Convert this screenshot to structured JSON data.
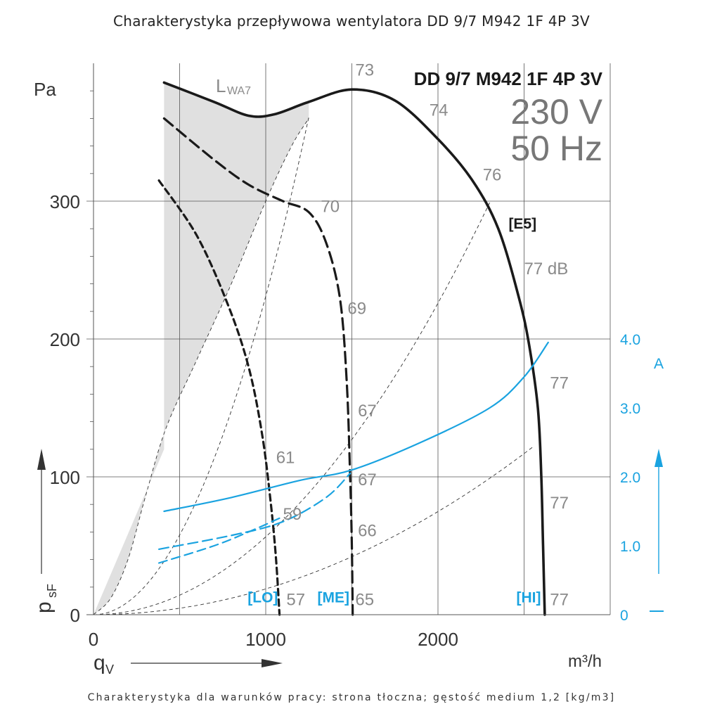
{
  "title": "Charakterystyka przepływowa wentylatora DD 9/7 M942 1F 4P 3V",
  "footnote": "Charakterystyka dla warunków pracy: strona tłoczna; gęstość medium 1,2 [kg/m3]",
  "colors": {
    "curve": "#1a1a1a",
    "current": "#1aa3e0",
    "grid": "#555555",
    "label_gray": "#8a8a8a",
    "shade": "#e0e0e0"
  },
  "chart_data": {
    "type": "line",
    "model": "DD 9/7 M942 1F 4P 3V",
    "voltage": "230 V",
    "frequency": "50 Hz",
    "xlabel": "q",
    "xlabel_sub": "V",
    "xunit": "m³/h",
    "ylabel": "p",
    "ylabel_sub": "sF",
    "yunit": "Pa",
    "y2unit": "A",
    "xlim": [
      0,
      3000
    ],
    "ylim": [
      0,
      400
    ],
    "y2lim": [
      0,
      4.0
    ],
    "x_ticks": [
      0,
      1000,
      2000
    ],
    "y_ticks": [
      0,
      100,
      200,
      300
    ],
    "y2_ticks": [
      "0",
      "1.0",
      "2.0",
      "3.0",
      "4.0"
    ],
    "lwa_label": "L",
    "lwa_sub": "WA7",
    "series_pressure": [
      {
        "name": "[E5]",
        "speed": "HI",
        "points": [
          [
            410,
            386
          ],
          [
            700,
            372
          ],
          [
            900,
            362
          ],
          [
            1050,
            363
          ],
          [
            1250,
            372
          ],
          [
            1500,
            381
          ],
          [
            1750,
            373
          ],
          [
            2000,
            345
          ],
          [
            2200,
            315
          ],
          [
            2350,
            280
          ],
          [
            2470,
            230
          ],
          [
            2530,
            195
          ],
          [
            2580,
            150
          ],
          [
            2600,
            100
          ],
          [
            2610,
            50
          ],
          [
            2620,
            0
          ]
        ]
      },
      {
        "name": "[ME]",
        "speed": "ME",
        "points": [
          [
            410,
            360
          ],
          [
            700,
            330
          ],
          [
            900,
            312
          ],
          [
            1100,
            300
          ],
          [
            1250,
            292
          ],
          [
            1350,
            270
          ],
          [
            1430,
            230
          ],
          [
            1470,
            170
          ],
          [
            1490,
            100
          ],
          [
            1500,
            50
          ],
          [
            1505,
            0
          ]
        ]
      },
      {
        "name": "[LO]",
        "speed": "LO",
        "points": [
          [
            380,
            315
          ],
          [
            600,
            275
          ],
          [
            780,
            225
          ],
          [
            900,
            180
          ],
          [
            980,
            130
          ],
          [
            1030,
            80
          ],
          [
            1060,
            40
          ],
          [
            1080,
            0
          ]
        ]
      }
    ],
    "series_current": [
      {
        "name": "HI",
        "points": [
          [
            410,
            1.5
          ],
          [
            800,
            1.7
          ],
          [
            1200,
            1.95
          ],
          [
            1500,
            2.1
          ],
          [
            1900,
            2.5
          ],
          [
            2300,
            3.0
          ],
          [
            2500,
            3.45
          ],
          [
            2640,
            3.95
          ]
        ]
      },
      {
        "name": "ME",
        "points": [
          [
            380,
            0.95
          ],
          [
            800,
            1.15
          ],
          [
            1100,
            1.35
          ],
          [
            1350,
            1.7
          ],
          [
            1490,
            2.05
          ]
        ]
      },
      {
        "name": "LO",
        "points": [
          [
            380,
            0.75
          ],
          [
            700,
            1.0
          ],
          [
            900,
            1.2
          ],
          [
            1080,
            1.4
          ]
        ]
      }
    ],
    "shaded_region_edge": [
      [
        0,
        0
      ],
      [
        100,
        12
      ],
      [
        200,
        40
      ],
      [
        300,
        85
      ],
      [
        420,
        135
      ],
      [
        600,
        185
      ],
      [
        800,
        240
      ],
      [
        1000,
        300
      ],
      [
        1150,
        340
      ],
      [
        1250,
        360
      ]
    ],
    "system_curves": [
      {
        "coef": 0.000231,
        "xmax": 1250
      },
      {
        "coef": 5.65e-05,
        "xmax": 2300
      },
      {
        "coef": 1.87e-05,
        "xmax": 2560
      }
    ],
    "sound_levels": [
      {
        "text": "73",
        "x": 1520,
        "y": 391
      },
      {
        "text": "74",
        "x": 1950,
        "y": 362
      },
      {
        "text": "76",
        "x": 2260,
        "y": 315
      },
      {
        "text": "77 dB",
        "x": 2500,
        "y": 247
      },
      {
        "text": "77",
        "x": 2650,
        "y": 164
      },
      {
        "text": "77",
        "x": 2650,
        "y": 77
      },
      {
        "text": "77",
        "x": 2650,
        "y": 7
      },
      {
        "text": "70",
        "x": 1320,
        "y": 292
      },
      {
        "text": "69",
        "x": 1475,
        "y": 218
      },
      {
        "text": "67",
        "x": 1535,
        "y": 144
      },
      {
        "text": "67",
        "x": 1535,
        "y": 94
      },
      {
        "text": "66",
        "x": 1535,
        "y": 57
      },
      {
        "text": "65",
        "x": 1520,
        "y": 7
      },
      {
        "text": "61",
        "x": 1060,
        "y": 110
      },
      {
        "text": "59",
        "x": 1100,
        "y": 69
      },
      {
        "text": "57",
        "x": 1120,
        "y": 7
      }
    ],
    "speed_labels": [
      {
        "text": "[E5]",
        "x": 2410,
        "y": 280,
        "color": "curve"
      },
      {
        "text": "[LO]",
        "x": 895,
        "y": 9,
        "color": "current"
      },
      {
        "text": "[ME]",
        "x": 1300,
        "y": 9,
        "color": "current"
      },
      {
        "text": "[HI]",
        "x": 2455,
        "y": 9,
        "color": "current"
      }
    ]
  }
}
